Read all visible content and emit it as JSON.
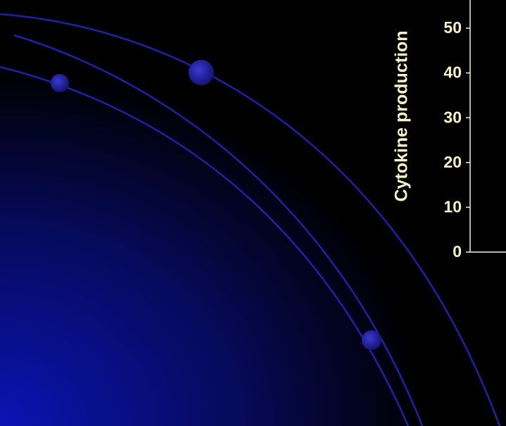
{
  "chart_data": {
    "type": "bar",
    "y_label": "Cytokine production",
    "ylim": [
      0,
      50
    ],
    "yticks": [
      0,
      10,
      20,
      30,
      40,
      50
    ],
    "axis_color": "#f7f3c6"
  }
}
